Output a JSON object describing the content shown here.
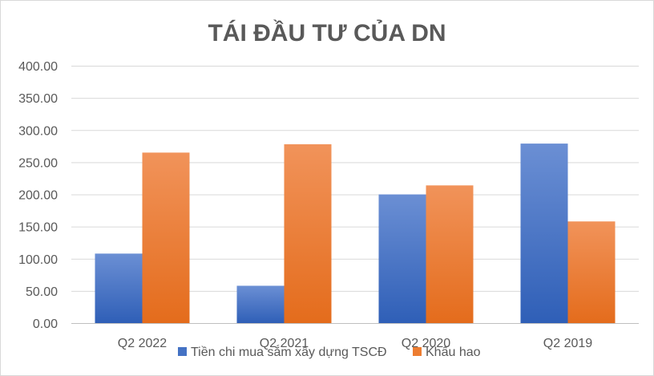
{
  "chart_data": {
    "type": "bar",
    "title": "TÁI ĐẦU TƯ CỦA DN",
    "categories": [
      "Q2 2022",
      "Q2 2021",
      "Q2 2020",
      "Q2 2019"
    ],
    "series": [
      {
        "name": "Tiền chi mua sắm xây dựng TSCĐ",
        "values": [
          108,
          58,
          200,
          279
        ],
        "color": "#4472c4"
      },
      {
        "name": "Khấu hao",
        "values": [
          265,
          278,
          214,
          158
        ],
        "color": "#ed7d31"
      }
    ],
    "ylim": [
      0,
      400
    ],
    "yticks": [
      "0.00",
      "50.00",
      "100.00",
      "150.00",
      "200.00",
      "250.00",
      "300.00",
      "350.00",
      "400.00"
    ],
    "xlabel": "",
    "ylabel": "",
    "grid": true,
    "legend": "bottom"
  }
}
